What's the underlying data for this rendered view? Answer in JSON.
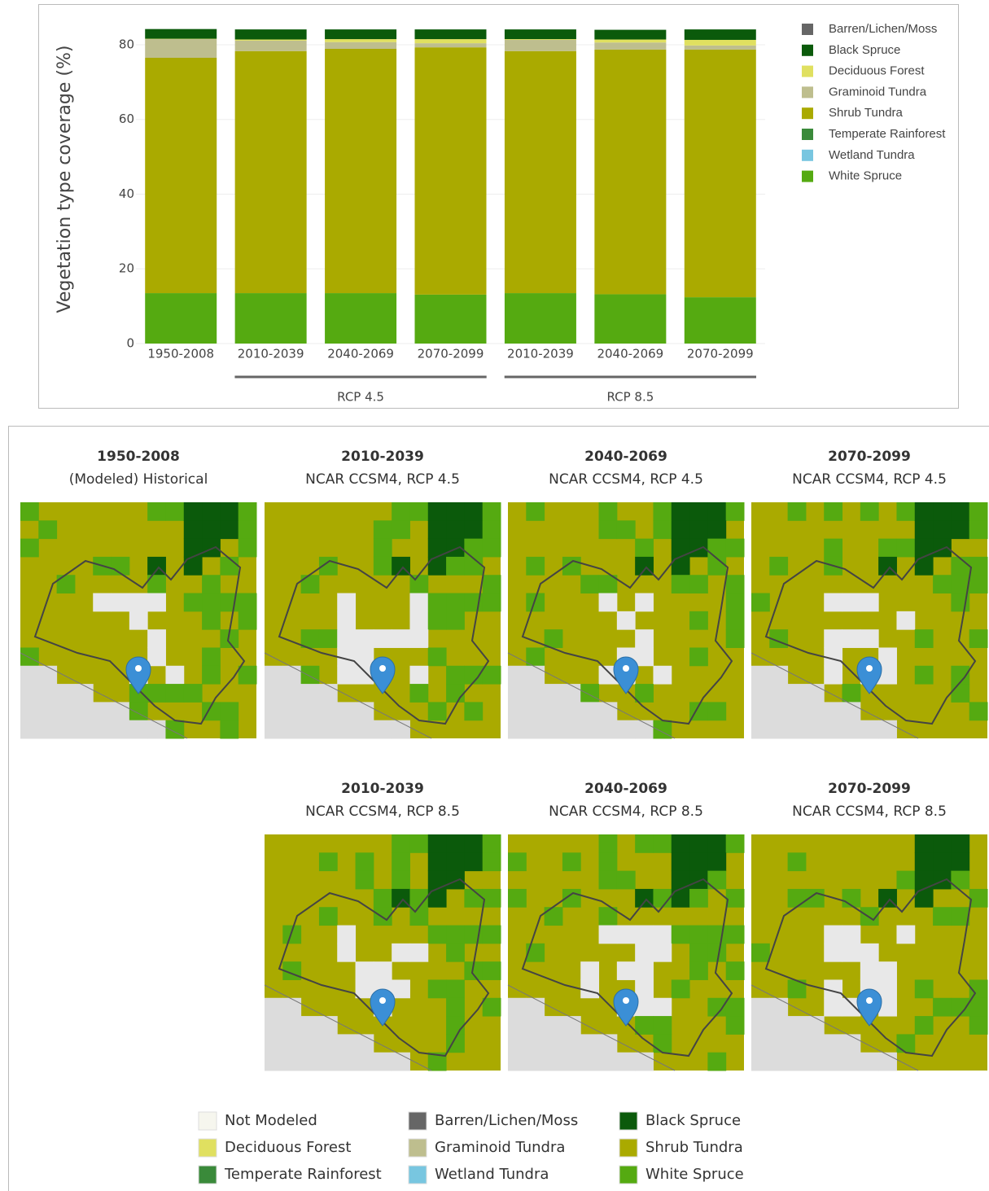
{
  "chart_data": {
    "type": "bar",
    "stacked": true,
    "ylabel": "Vegetation type coverage (%)",
    "categories": [
      "1950-2008",
      "2010-2039",
      "2040-2069",
      "2070-2099",
      "2010-2039",
      "2040-2069",
      "2070-2099"
    ],
    "category_groups": [
      null,
      "RCP 4.5",
      "RCP 4.5",
      "RCP 4.5",
      "RCP 8.5",
      "RCP 8.5",
      "RCP 8.5"
    ],
    "ylim": [
      0,
      85
    ],
    "yticks": [
      0,
      20,
      40,
      60,
      80
    ],
    "grid": true,
    "legend": "right",
    "series": [
      {
        "name": "Barren/Lichen/Moss",
        "color": "#666666",
        "values": [
          0,
          0,
          0,
          0,
          0,
          0,
          0
        ]
      },
      {
        "name": "Black Spruce",
        "color": "#0b5a0b",
        "values": [
          2.6,
          2.7,
          2.6,
          2.6,
          2.6,
          2.6,
          2.8
        ]
      },
      {
        "name": "Deciduous Forest",
        "color": "#e0e060",
        "values": [
          0.1,
          0.3,
          0.8,
          1.1,
          0.2,
          0.8,
          1.5
        ]
      },
      {
        "name": "Graminoid Tundra",
        "color": "#bebe8e",
        "values": [
          5.0,
          2.8,
          1.8,
          1.1,
          3.0,
          1.9,
          1.1
        ]
      },
      {
        "name": "Shrub Tundra",
        "color": "#aaaa00",
        "values": [
          63.0,
          64.8,
          65.4,
          66.2,
          64.8,
          65.5,
          66.3
        ]
      },
      {
        "name": "Temperate Rainforest",
        "color": "#3a8a3a",
        "values": [
          0,
          0,
          0,
          0,
          0,
          0,
          0
        ]
      },
      {
        "name": "Wetland Tundra",
        "color": "#78c6e0",
        "values": [
          0,
          0,
          0,
          0,
          0,
          0,
          0
        ]
      },
      {
        "name": "White Spruce",
        "color": "#55aa11",
        "values": [
          13.5,
          13.5,
          13.5,
          13.1,
          13.5,
          13.2,
          12.4
        ]
      }
    ]
  },
  "maps": {
    "panels": [
      {
        "period": "1950-2008",
        "scenario": "(Modeled) Historical"
      },
      {
        "period": "2010-2039",
        "scenario": "NCAR CCSM4, RCP 4.5"
      },
      {
        "period": "2040-2069",
        "scenario": "NCAR CCSM4, RCP 4.5"
      },
      {
        "period": "2070-2099",
        "scenario": "NCAR CCSM4, RCP 4.5"
      },
      {
        "period": "2010-2039",
        "scenario": "NCAR CCSM4, RCP 8.5"
      },
      {
        "period": "2040-2069",
        "scenario": "NCAR CCSM4, RCP 8.5"
      },
      {
        "period": "2070-2099",
        "scenario": "NCAR CCSM4, RCP 8.5"
      }
    ],
    "legend": [
      {
        "label": "Not Modeled",
        "color": "#f6f6ee"
      },
      {
        "label": "Deciduous Forest",
        "color": "#e0e060"
      },
      {
        "label": "Temperate Rainforest",
        "color": "#3a8a3a"
      },
      {
        "label": "Barren/Lichen/Moss",
        "color": "#666666"
      },
      {
        "label": "Graminoid Tundra",
        "color": "#bebe8e"
      },
      {
        "label": "Wetland Tundra",
        "color": "#78c6e0"
      },
      {
        "label": "Black Spruce",
        "color": "#0b5a0b"
      },
      {
        "label": "Shrub Tundra",
        "color": "#aaaa00"
      },
      {
        "label": "White Spruce",
        "color": "#55aa11"
      }
    ]
  }
}
